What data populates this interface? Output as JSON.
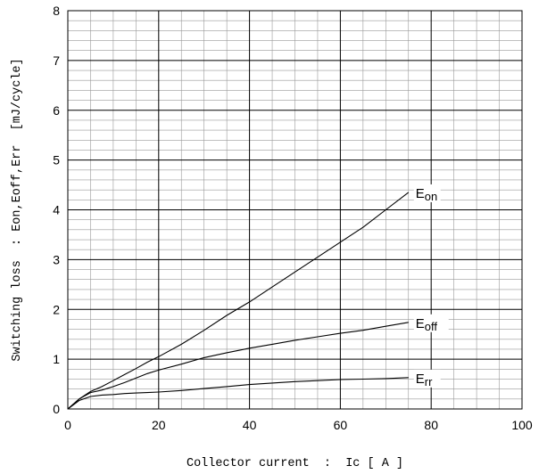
{
  "chart_data": {
    "type": "line",
    "xlabel": "Collector current  :  Ic [ A ]",
    "ylabel": "Switching loss  : Eon,Eoff,Err  [mJ/cycle]",
    "xlim": [
      0,
      100
    ],
    "ylim": [
      0,
      8
    ],
    "x_ticks": [
      "0",
      "20",
      "40",
      "60",
      "80",
      "100"
    ],
    "y_ticks": [
      "0",
      "1",
      "2",
      "3",
      "4",
      "5",
      "6",
      "7",
      "8"
    ],
    "x_major_step": 20,
    "x_minor_step": 5,
    "y_major_step": 1,
    "y_minor_step": 0.2,
    "grid": true,
    "series": [
      {
        "name": "Eon",
        "label_main": "E",
        "label_sub": "on",
        "x": [
          0,
          2.5,
          5,
          7.5,
          10,
          12.5,
          15,
          17.5,
          20,
          25,
          30,
          35,
          40,
          45,
          50,
          55,
          60,
          65,
          70,
          75
        ],
        "y": [
          0,
          0.2,
          0.35,
          0.45,
          0.57,
          0.69,
          0.81,
          0.94,
          1.05,
          1.3,
          1.58,
          1.88,
          2.15,
          2.45,
          2.75,
          3.05,
          3.35,
          3.65,
          4.0,
          4.35
        ]
      },
      {
        "name": "Eoff",
        "label_main": "E",
        "label_sub": "off",
        "x": [
          0,
          2.5,
          5,
          7.5,
          10,
          12.5,
          15,
          17.5,
          20,
          25,
          30,
          35,
          40,
          45,
          50,
          55,
          60,
          65,
          70,
          75
        ],
        "y": [
          0,
          0.2,
          0.33,
          0.38,
          0.45,
          0.53,
          0.62,
          0.71,
          0.78,
          0.9,
          1.03,
          1.13,
          1.22,
          1.3,
          1.38,
          1.45,
          1.52,
          1.58,
          1.66,
          1.74
        ]
      },
      {
        "name": "Err",
        "label_main": "E",
        "label_sub": "rr",
        "x": [
          0,
          2.5,
          5,
          7.5,
          10,
          12.5,
          15,
          17.5,
          20,
          25,
          30,
          35,
          40,
          45,
          50,
          55,
          60,
          65,
          70,
          75
        ],
        "y": [
          0,
          0.17,
          0.25,
          0.28,
          0.29,
          0.31,
          0.32,
          0.33,
          0.34,
          0.37,
          0.41,
          0.45,
          0.49,
          0.52,
          0.55,
          0.57,
          0.59,
          0.6,
          0.61,
          0.63
        ]
      }
    ]
  }
}
